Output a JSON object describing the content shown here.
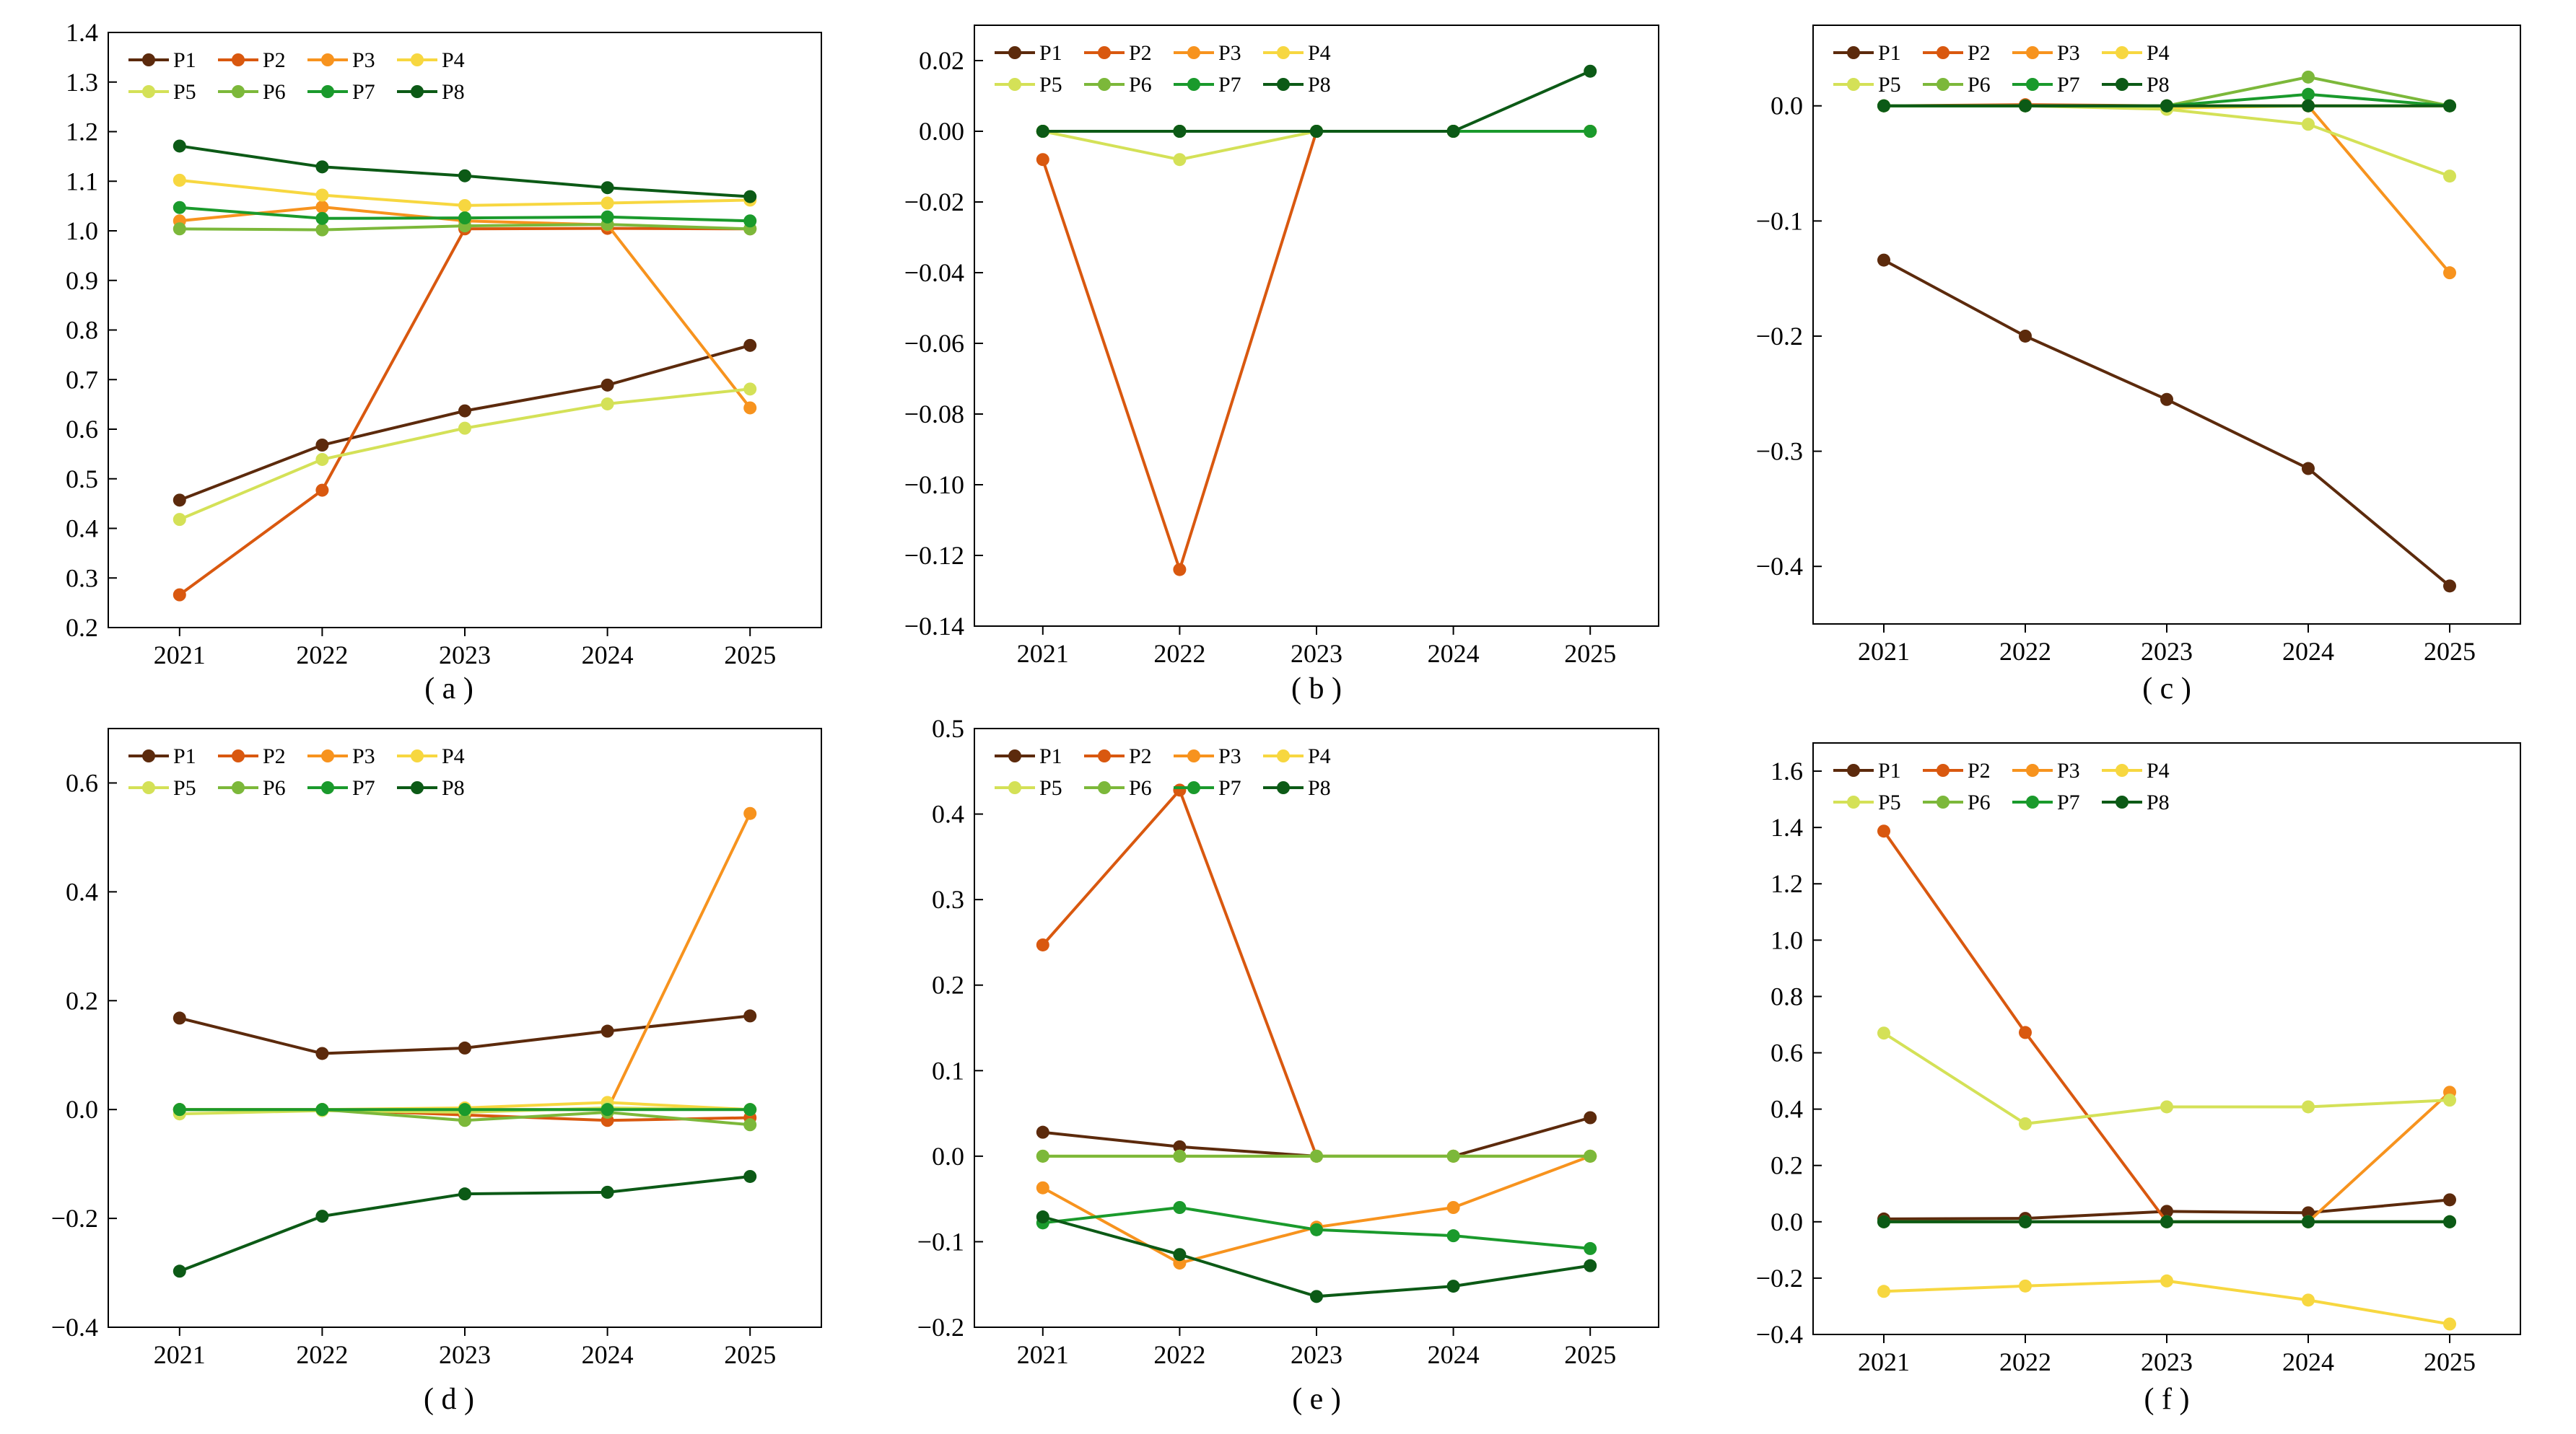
{
  "series_names": [
    "P1",
    "P2",
    "P3",
    "P4",
    "P5",
    "P6",
    "P7",
    "P8"
  ],
  "series_colors": [
    "#5c2a0c",
    "#d9580f",
    "#f7931e",
    "#f7d740",
    "#d4e157",
    "#7cb83a",
    "#1a9a2c",
    "#0c5a16"
  ],
  "chart_data": [
    {
      "type": "line",
      "panel_label": "( a )",
      "categories": [
        "2021",
        "2022",
        "2023",
        "2024",
        "2025"
      ],
      "ylim": [
        0.2,
        1.4
      ],
      "yticks": [
        "0.2",
        "0.3",
        "0.4",
        "0.5",
        "0.6",
        "0.7",
        "0.8",
        "0.9",
        "1.0",
        "1.1",
        "1.2",
        "1.3",
        "1.4"
      ],
      "grid": false,
      "legend": "top-left",
      "series": [
        {
          "name": "P1",
          "values": [
            0.457,
            0.568,
            0.637,
            0.689,
            0.769
          ]
        },
        {
          "name": "P2",
          "values": [
            0.266,
            0.477,
            1.004,
            1.005,
            1.004
          ]
        },
        {
          "name": "P3",
          "values": [
            1.02,
            1.048,
            1.02,
            1.012,
            0.643
          ]
        },
        {
          "name": "P4",
          "values": [
            1.102,
            1.072,
            1.051,
            1.056,
            1.062
          ]
        },
        {
          "name": "P5",
          "values": [
            0.418,
            0.539,
            0.602,
            0.651,
            0.681
          ]
        },
        {
          "name": "P6",
          "values": [
            1.004,
            1.002,
            1.01,
            1.013,
            1.004
          ]
        },
        {
          "name": "P7",
          "values": [
            1.047,
            1.025,
            1.026,
            1.028,
            1.02
          ]
        },
        {
          "name": "P8",
          "values": [
            1.171,
            1.129,
            1.111,
            1.087,
            1.069
          ]
        }
      ]
    },
    {
      "type": "line",
      "panel_label": "( b )",
      "categories": [
        "2021",
        "2022",
        "2023",
        "2024",
        "2025"
      ],
      "ylim": [
        -0.14,
        0.03
      ],
      "yticks": [
        "0.02",
        "0.00",
        "−0.02",
        "−0.04",
        "−0.06",
        "−0.08",
        "−0.10",
        "−0.12",
        "−0.14"
      ],
      "grid": false,
      "legend": "top-left",
      "series": [
        {
          "name": "P1",
          "values": [
            0,
            0,
            0,
            0,
            0
          ]
        },
        {
          "name": "P2",
          "values": [
            -0.008,
            -0.124,
            0,
            0,
            0
          ]
        },
        {
          "name": "P3",
          "values": [
            0,
            0,
            0,
            0,
            0
          ]
        },
        {
          "name": "P4",
          "values": [
            0,
            0,
            0,
            0,
            0
          ]
        },
        {
          "name": "P5",
          "values": [
            0,
            -0.008,
            0,
            0,
            0
          ]
        },
        {
          "name": "P6",
          "values": [
            0,
            0,
            0,
            0,
            0
          ]
        },
        {
          "name": "P7",
          "values": [
            0,
            0,
            0,
            0,
            0
          ]
        },
        {
          "name": "P8",
          "values": [
            0,
            0,
            0,
            0,
            0.017
          ]
        }
      ]
    },
    {
      "type": "line",
      "panel_label": "( c )",
      "categories": [
        "2021",
        "2022",
        "2023",
        "2024",
        "2025"
      ],
      "ylim": [
        -0.45,
        0.07
      ],
      "yticks": [
        "0.0",
        "−0.1",
        "−0.2",
        "−0.3",
        "−0.4"
      ],
      "grid": false,
      "legend": "top-left",
      "series": [
        {
          "name": "P1",
          "values": [
            -0.134,
            -0.2,
            -0.255,
            -0.315,
            -0.417
          ]
        },
        {
          "name": "P2",
          "values": [
            0,
            0.001,
            0,
            0,
            0
          ]
        },
        {
          "name": "P3",
          "values": [
            0,
            0,
            0,
            0,
            -0.145
          ]
        },
        {
          "name": "P4",
          "values": [
            0,
            0,
            -0.002,
            0,
            0
          ]
        },
        {
          "name": "P5",
          "values": [
            0,
            0,
            -0.003,
            -0.016,
            -0.061
          ]
        },
        {
          "name": "P6",
          "values": [
            0,
            0,
            0,
            0.025,
            0
          ]
        },
        {
          "name": "P7",
          "values": [
            0,
            0,
            0,
            0.01,
            0
          ]
        },
        {
          "name": "P8",
          "values": [
            0,
            0,
            0,
            0,
            0
          ]
        }
      ]
    },
    {
      "type": "line",
      "panel_label": "( d )",
      "categories": [
        "2021",
        "2022",
        "2023",
        "2024",
        "2025"
      ],
      "ylim": [
        -0.4,
        0.7
      ],
      "yticks": [
        "0.6",
        "0.4",
        "0.2",
        "0.0",
        "−0.2",
        "−0.4"
      ],
      "grid": false,
      "legend": "top-left",
      "series": [
        {
          "name": "P1",
          "values": [
            0.168,
            0.103,
            0.113,
            0.144,
            0.172
          ]
        },
        {
          "name": "P2",
          "values": [
            0,
            0,
            -0.01,
            -0.02,
            -0.015
          ]
        },
        {
          "name": "P3",
          "values": [
            0,
            0,
            0,
            0,
            0.544
          ]
        },
        {
          "name": "P4",
          "values": [
            0,
            0,
            0.003,
            0.013,
            0
          ]
        },
        {
          "name": "P5",
          "values": [
            -0.008,
            -0.002,
            -0.005,
            0.003,
            0
          ]
        },
        {
          "name": "P6",
          "values": [
            0,
            0,
            -0.02,
            -0.005,
            -0.028
          ]
        },
        {
          "name": "P7",
          "values": [
            0,
            0,
            0,
            0,
            0
          ]
        },
        {
          "name": "P8",
          "values": [
            -0.297,
            -0.196,
            -0.155,
            -0.152,
            -0.123
          ]
        }
      ]
    },
    {
      "type": "line",
      "panel_label": "( e )",
      "categories": [
        "2021",
        "2022",
        "2023",
        "2024",
        "2025"
      ],
      "ylim": [
        -0.2,
        0.5
      ],
      "yticks": [
        "0.5",
        "0.4",
        "0.3",
        "0.2",
        "0.1",
        "0.0",
        "−0.1",
        "−0.2"
      ],
      "grid": false,
      "legend": "top-left",
      "series": [
        {
          "name": "P1",
          "values": [
            0.028,
            0.011,
            0,
            0,
            0.045
          ]
        },
        {
          "name": "P2",
          "values": [
            0.247,
            0.428,
            0,
            0,
            0
          ]
        },
        {
          "name": "P3",
          "values": [
            -0.037,
            -0.125,
            -0.083,
            -0.06,
            0
          ]
        },
        {
          "name": "P4",
          "values": [
            0,
            0,
            0,
            0,
            0
          ]
        },
        {
          "name": "P5",
          "values": [
            0,
            0,
            0,
            0,
            0
          ]
        },
        {
          "name": "P6",
          "values": [
            0,
            0,
            0,
            0,
            0
          ]
        },
        {
          "name": "P7",
          "values": [
            -0.078,
            -0.06,
            -0.086,
            -0.093,
            -0.108
          ]
        },
        {
          "name": "P8",
          "values": [
            -0.071,
            -0.115,
            -0.164,
            -0.152,
            -0.128
          ]
        }
      ]
    },
    {
      "type": "line",
      "panel_label": "( f )",
      "categories": [
        "2021",
        "2022",
        "2023",
        "2024",
        "2025"
      ],
      "ylim": [
        -0.4,
        1.7
      ],
      "yticks": [
        "1.6",
        "1.4",
        "1.2",
        "1.0",
        "0.8",
        "0.6",
        "0.4",
        "0.2",
        "0.0",
        "−0.2",
        "−0.4"
      ],
      "grid": false,
      "legend": "top-left",
      "series": [
        {
          "name": "P1",
          "values": [
            0.01,
            0.012,
            0.037,
            0.032,
            0.078
          ]
        },
        {
          "name": "P2",
          "values": [
            1.387,
            0.672,
            0,
            0,
            0
          ]
        },
        {
          "name": "P3",
          "values": [
            0,
            0,
            0,
            0,
            0.46
          ]
        },
        {
          "name": "P4",
          "values": [
            -0.247,
            -0.228,
            -0.21,
            -0.278,
            -0.363
          ]
        },
        {
          "name": "P5",
          "values": [
            0.67,
            0.348,
            0.408,
            0.408,
            0.432
          ]
        },
        {
          "name": "P6",
          "values": [
            0,
            0,
            0,
            0,
            0
          ]
        },
        {
          "name": "P7",
          "values": [
            0,
            0,
            0,
            0,
            0
          ]
        },
        {
          "name": "P8",
          "values": [
            0,
            0,
            0,
            0,
            0
          ]
        }
      ]
    }
  ]
}
